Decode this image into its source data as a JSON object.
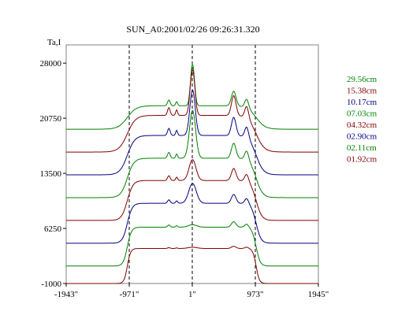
{
  "chart_data": {
    "type": "line",
    "title": "SUN_A0:2001/02/26 09:26:31.320",
    "ylabel": "Ta,I",
    "xlabel": "",
    "x_tick_labels": [
      "-1943\"",
      "-971\"",
      "1\"",
      "973\"",
      "1945\""
    ],
    "x_tick_values": [
      -1943,
      -971,
      1,
      973,
      1945
    ],
    "y_tick_labels": [
      "28000",
      "20750",
      "13500",
      "6250",
      "-1000"
    ],
    "y_tick_values": [
      28000,
      20750,
      13500,
      6250,
      -1000
    ],
    "xlim": [
      -1943,
      1945
    ],
    "ylim": [
      -1000,
      30400
    ],
    "reference_lines_x": [
      -971,
      1,
      973
    ],
    "grid": false,
    "legend_position": "right",
    "series": [
      {
        "name": "29.56cm",
        "color": "#008000",
        "baseline": 19300,
        "peak": 27900,
        "limb": 23600
      },
      {
        "name": "15.38cm",
        "color": "#800000",
        "baseline": 16300,
        "peak": 28000,
        "limb": 23000
      },
      {
        "name": "10.17cm",
        "color": "#000080",
        "baseline": 13300,
        "peak": 26400,
        "limb": 20500
      },
      {
        "name": "07.03cm",
        "color": "#008000",
        "baseline": 10300,
        "peak": 25400,
        "limb": 17500
      },
      {
        "name": "04.32cm",
        "color": "#800000",
        "baseline": 7300,
        "peak": 17900,
        "limb": 14600
      },
      {
        "name": "02.90cm",
        "color": "#000080",
        "baseline": 4300,
        "peak": 16200,
        "limb": 11600
      },
      {
        "name": "02.11cm",
        "color": "#008000",
        "baseline": 1300,
        "peak": 7600,
        "limb": 8400
      },
      {
        "name": "01.92cm",
        "color": "#800000",
        "baseline": -1000,
        "peak": 4700,
        "limb": 5400
      }
    ]
  }
}
